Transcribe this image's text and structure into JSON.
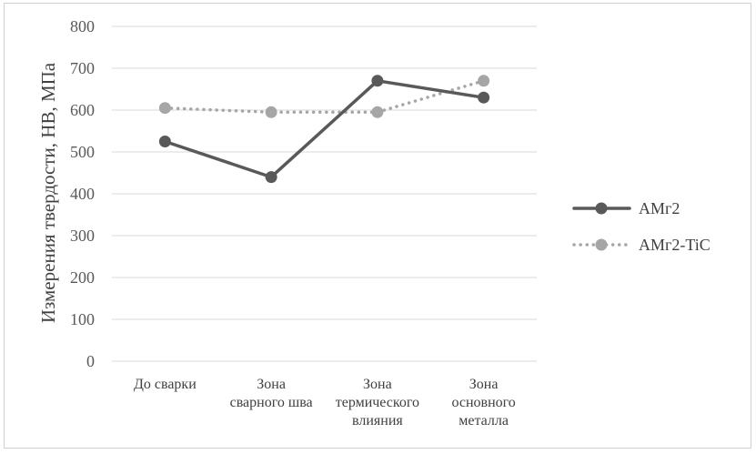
{
  "chart_data": {
    "type": "line",
    "title": "",
    "xlabel": "",
    "ylabel": "Измерения твердости, HB, МПа",
    "ylim": [
      0,
      800
    ],
    "yticks": [
      0,
      100,
      200,
      300,
      400,
      500,
      600,
      700,
      800
    ],
    "grid": true,
    "legend": "right",
    "categories": [
      [
        "До сварки"
      ],
      [
        "Зона",
        "сварного шва"
      ],
      [
        "Зона",
        "термического",
        "влияния"
      ],
      [
        "Зона",
        "основного",
        "металла"
      ]
    ],
    "series": [
      {
        "name": "АМг2",
        "values": [
          525,
          440,
          670,
          630
        ],
        "color": "#595959",
        "style": "solid"
      },
      {
        "name": "АМг2-TiC",
        "values": [
          605,
          595,
          595,
          670
        ],
        "color": "#a6a6a6",
        "style": "dotted"
      }
    ]
  }
}
